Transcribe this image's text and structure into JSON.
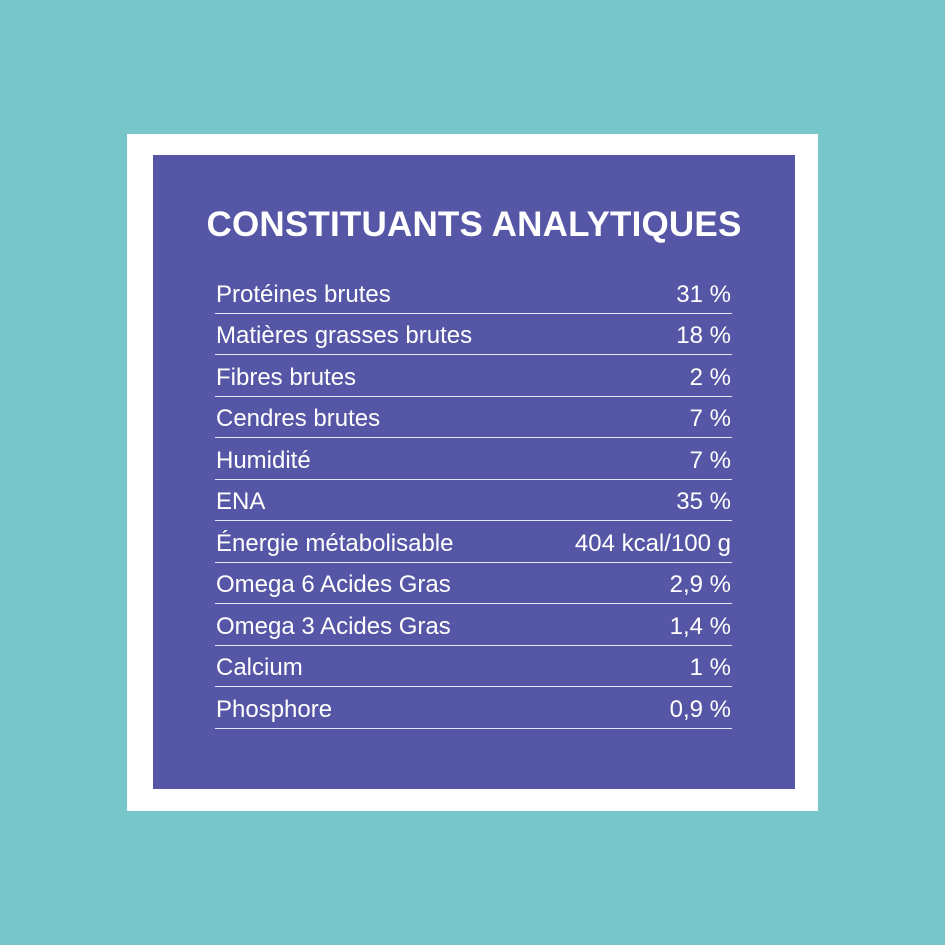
{
  "colors": {
    "background": "#77c6ca",
    "frame": "#ffffff",
    "panel": "#5656a6",
    "text": "#ffffff"
  },
  "title": "CONSTITUANTS ANALYTIQUES",
  "rows": [
    {
      "label": "Protéines brutes",
      "value": "31 %"
    },
    {
      "label": "Matières grasses brutes",
      "value": "18 %"
    },
    {
      "label": "Fibres brutes",
      "value": "2 %"
    },
    {
      "label": "Cendres brutes",
      "value": "7 %"
    },
    {
      "label": "Humidité",
      "value": "7 %"
    },
    {
      "label": "ENA",
      "value": "35 %"
    },
    {
      "label": "Énergie métabolisable",
      "value": "404 kcal/100 g"
    },
    {
      "label": "Omega 6 Acides Gras",
      "value": "2,9 %"
    },
    {
      "label": "Omega 3 Acides Gras",
      "value": "1,4 %"
    },
    {
      "label": "Calcium",
      "value": "1 %"
    },
    {
      "label": "Phosphore",
      "value": "0,9 %"
    }
  ]
}
